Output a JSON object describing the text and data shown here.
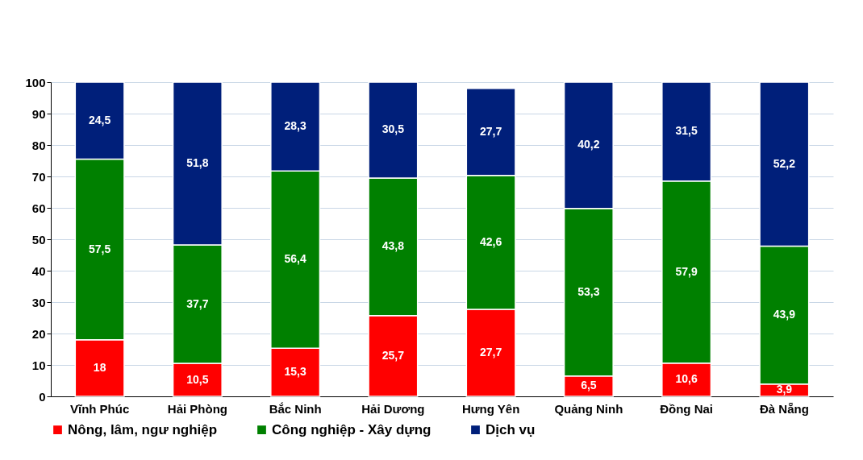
{
  "chart_data": {
    "type": "bar",
    "stacked": true,
    "categories": [
      "Vĩnh Phúc",
      "Hải Phòng",
      "Bắc Ninh",
      "Hải Dương",
      "Hưng Yên",
      "Quảng Ninh",
      "Đồng Nai",
      "Đà Nẵng"
    ],
    "series": [
      {
        "name": "Nông, lâm, ngư nghiệp",
        "color": "#ff0000",
        "values": [
          18,
          10.5,
          15.3,
          25.7,
          27.7,
          6.5,
          10.6,
          3.9
        ],
        "value_labels": [
          "18",
          "10,5",
          "15,3",
          "25,7",
          "27,7",
          "6,5",
          "10,6",
          "3,9"
        ]
      },
      {
        "name": "Công nghiệp - Xây dựng",
        "color": "#008000",
        "values": [
          57.5,
          37.7,
          56.4,
          43.8,
          42.6,
          53.3,
          57.9,
          43.9
        ],
        "value_labels": [
          "57,5",
          "37,7",
          "56,4",
          "43,8",
          "42,6",
          "53,3",
          "57,9",
          "43,9"
        ]
      },
      {
        "name": "Dịch vụ",
        "color": "#001f7a",
        "values": [
          24.5,
          51.8,
          28.3,
          30.5,
          27.7,
          40.2,
          31.5,
          52.2
        ],
        "value_labels": [
          "24,5",
          "51,8",
          "28,3",
          "30,5",
          "27,7",
          "40,2",
          "31,5",
          "52,2"
        ]
      }
    ],
    "ylim": [
      0,
      100
    ],
    "yticks": [
      0,
      10,
      20,
      30,
      40,
      50,
      60,
      70,
      80,
      90,
      100
    ],
    "grid": "y",
    "legend": "bottom"
  }
}
